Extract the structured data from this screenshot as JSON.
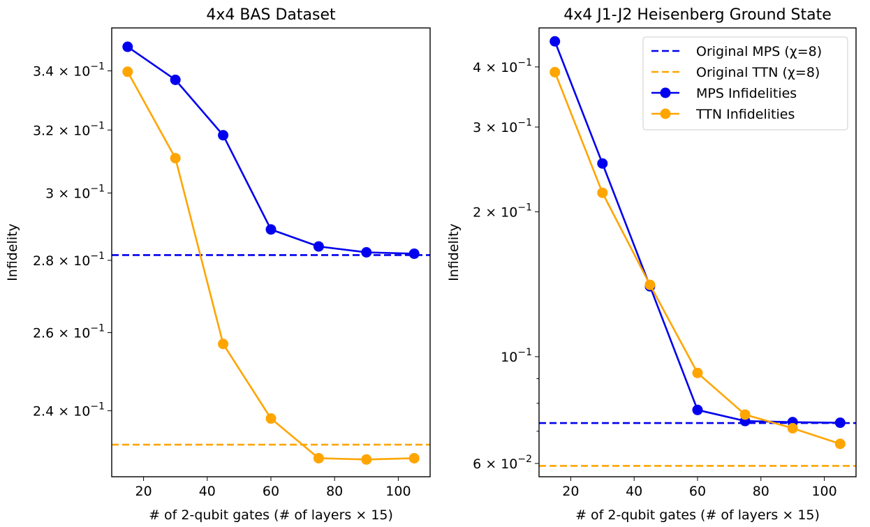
{
  "chart_data": [
    {
      "type": "line",
      "title": "4x4 BAS Dataset",
      "xlabel": "# of 2-qubit gates (# of layers × 15)",
      "ylabel": "Infidelity",
      "yscale": "log",
      "xlim": [
        10,
        110
      ],
      "ylim": [
        0.2243,
        0.3553
      ],
      "grid": false,
      "legend": null,
      "xticks": [
        20,
        40,
        60,
        80,
        100
      ],
      "xtick_labels": [
        "20",
        "40",
        "60",
        "80",
        "100"
      ],
      "yticks": [
        0.24,
        0.26,
        0.28,
        0.3,
        0.32,
        0.34
      ],
      "ytick_labels": [
        {
          "mant": "2.4",
          "exp": "−1"
        },
        {
          "mant": "2.6",
          "exp": "−1"
        },
        {
          "mant": "2.8",
          "exp": "−1"
        },
        {
          "mant": "3",
          "exp": "−1"
        },
        {
          "mant": "3.2",
          "exp": "−1"
        },
        {
          "mant": "3.4",
          "exp": "−1"
        }
      ],
      "minor_yticks": [],
      "series": [
        {
          "name": "MPS Infidelities",
          "color": "#0000ee",
          "x": [
            15,
            30,
            45,
            60,
            75,
            90,
            105
          ],
          "y": [
            0.3485,
            0.3369,
            0.3183,
            0.289,
            0.284,
            0.2823,
            0.2819
          ]
        },
        {
          "name": "TTN Infidelities",
          "color": "#ffa500",
          "x": [
            15,
            30,
            45,
            60,
            75,
            90,
            105
          ],
          "y": [
            0.3397,
            0.3109,
            0.257,
            0.2381,
            0.2286,
            0.2283,
            0.2286
          ]
        }
      ],
      "hlines": [
        {
          "name": "Original MPS (χ=8)",
          "color": "#0000ee",
          "y": 0.2815
        },
        {
          "name": "Original TTN (χ=8)",
          "color": "#ffa500",
          "y": 0.2318
        }
      ]
    },
    {
      "type": "line",
      "title": "4x4 J1-J2 Heisenberg Ground State",
      "xlabel": "# of 2-qubit gates (# of layers × 15)",
      "ylabel": "Infidelity",
      "yscale": "log",
      "xlim": [
        10,
        110
      ],
      "ylim": [
        0.0563,
        0.482
      ],
      "grid": false,
      "legend": "top-right",
      "xticks": [
        20,
        40,
        60,
        80,
        100
      ],
      "xtick_labels": [
        "20",
        "40",
        "60",
        "80",
        "100"
      ],
      "yticks": [
        0.06,
        0.1,
        0.2,
        0.3,
        0.4
      ],
      "ytick_labels": [
        {
          "mant": "6",
          "exp": "−2"
        },
        {
          "mant": "",
          "exp": "−1"
        },
        {
          "mant": "2",
          "exp": "−1"
        },
        {
          "mant": "3",
          "exp": "−1"
        },
        {
          "mant": "4",
          "exp": "−1"
        }
      ],
      "minor_yticks": [
        0.07,
        0.08,
        0.09
      ],
      "series": [
        {
          "name": "MPS Infidelities",
          "color": "#0000ee",
          "x": [
            15,
            30,
            45,
            60,
            75,
            90,
            105
          ],
          "y": [
            0.452,
            0.252,
            0.14,
            0.0775,
            0.0735,
            0.0731,
            0.0729
          ]
        },
        {
          "name": "TTN Infidelities",
          "color": "#ffa500",
          "x": [
            15,
            30,
            45,
            60,
            75,
            90,
            105
          ],
          "y": [
            0.39,
            0.219,
            0.141,
            0.0925,
            0.0758,
            0.071,
            0.0659
          ]
        }
      ],
      "hlines": [
        {
          "name": "Original MPS (χ=8)",
          "color": "#0000ee",
          "y": 0.0728
        },
        {
          "name": "Original TTN (χ=8)",
          "color": "#ffa500",
          "y": 0.0593
        }
      ]
    }
  ]
}
